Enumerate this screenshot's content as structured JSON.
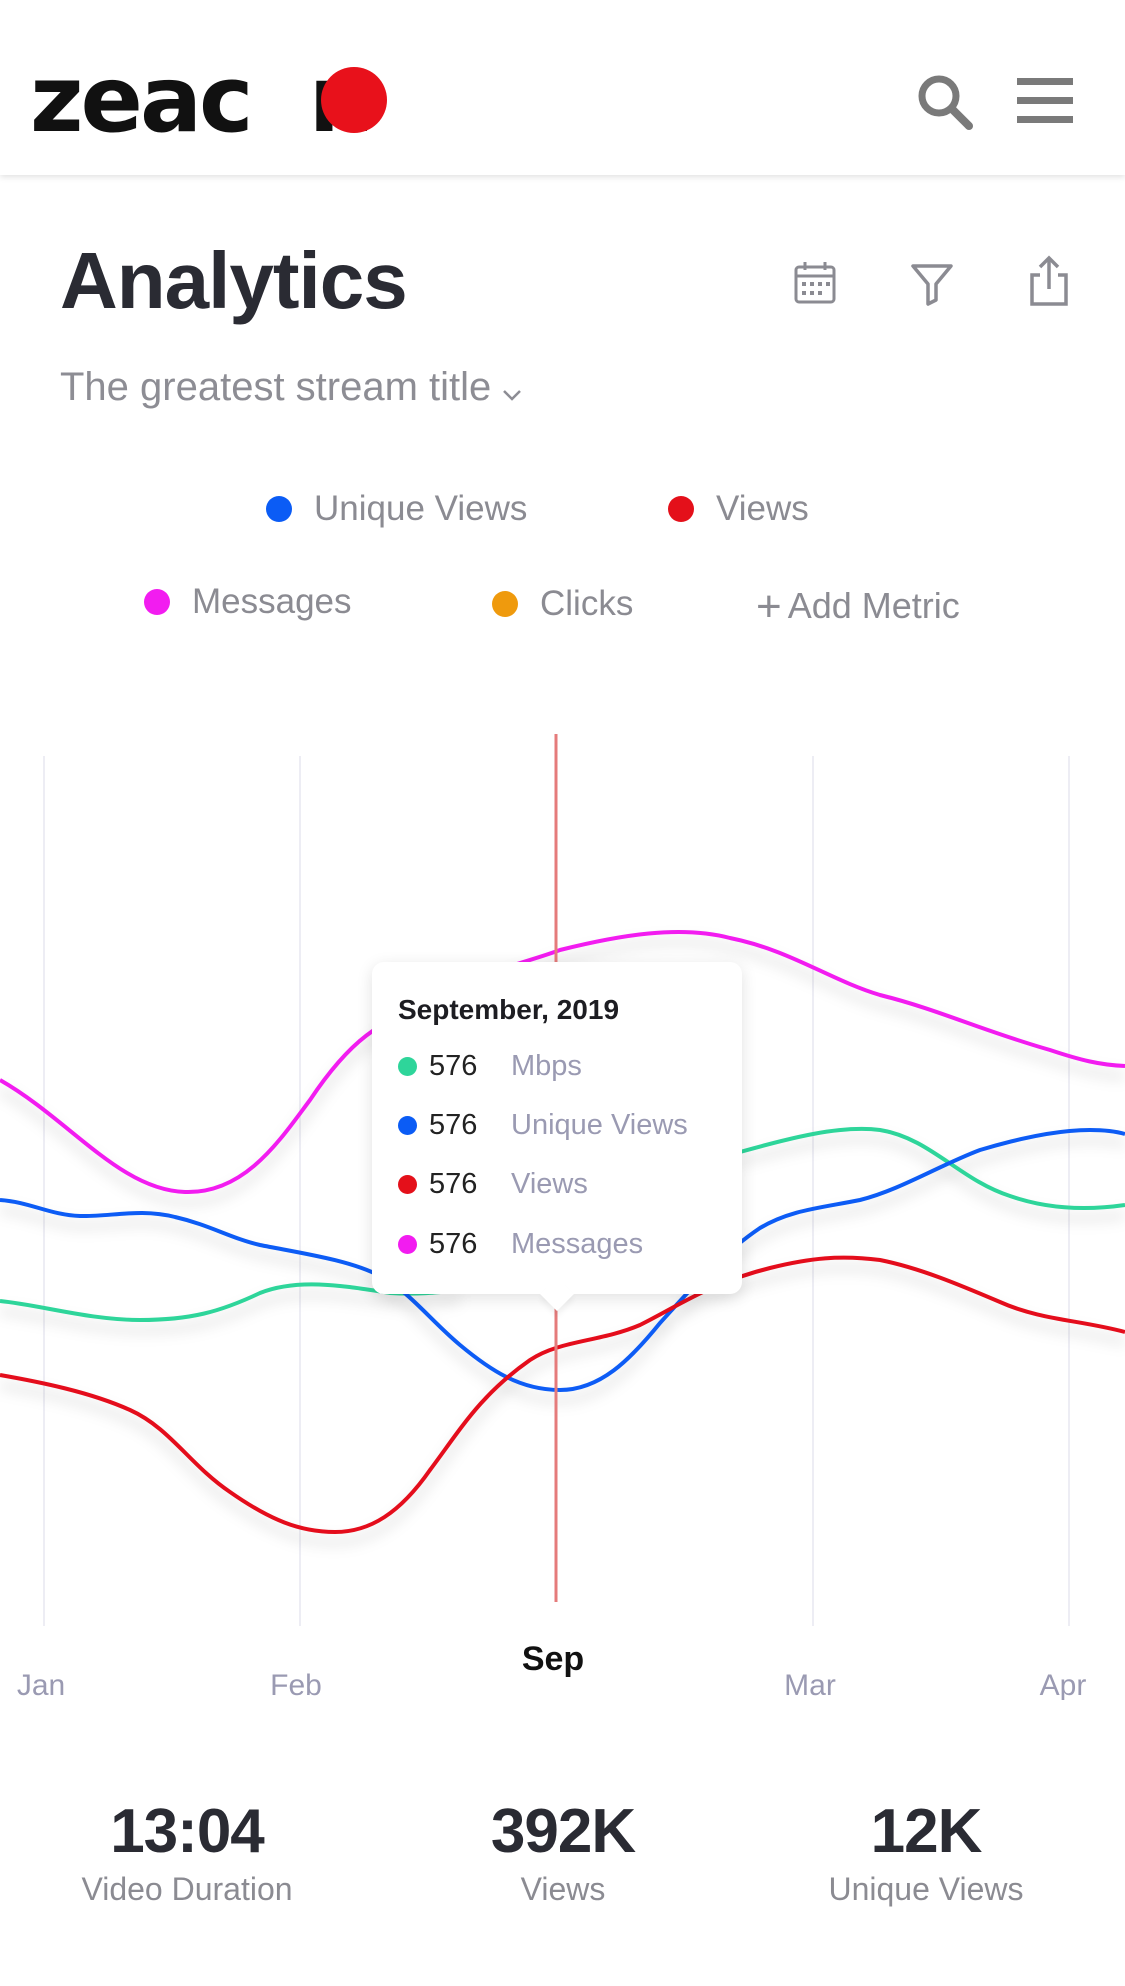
{
  "app": {
    "brand": "zeacon"
  },
  "header": {
    "search_icon": "search-icon",
    "menu_icon": "hamburger-menu-icon"
  },
  "page": {
    "title": "Analytics",
    "stream_title": "The greatest stream title",
    "actions": [
      "calendar-icon",
      "filter-icon",
      "share-icon"
    ]
  },
  "legend": {
    "items": [
      {
        "label": "Unique Views",
        "color": "#0b5cf5"
      },
      {
        "label": "Views",
        "color": "#e4101a"
      },
      {
        "label": "Messages",
        "color": "#f21cf0"
      },
      {
        "label": "Clicks",
        "color": "#ef9a0d"
      }
    ],
    "add_label": "Add Metric"
  },
  "chart_data": {
    "type": "line",
    "x_labels": [
      "Jan",
      "Feb",
      "Sep",
      "Mar",
      "Apr"
    ],
    "active_label": "Sep",
    "grid": true,
    "series": [
      {
        "name": "Messages",
        "color": "#f21cf0"
      },
      {
        "name": "Mbps",
        "color": "#2ed59a"
      },
      {
        "name": "Unique Views",
        "color": "#0b5cf5"
      },
      {
        "name": "Views",
        "color": "#e4101a"
      }
    ]
  },
  "tooltip": {
    "title": "September, 2019",
    "rows": [
      {
        "value": "576",
        "label": "Mbps",
        "color": "#2ed59a"
      },
      {
        "value": "576",
        "label": "Unique Views",
        "color": "#0b5cf5"
      },
      {
        "value": "576",
        "label": "Views",
        "color": "#e4101a"
      },
      {
        "value": "576",
        "label": "Messages",
        "color": "#f21cf0"
      }
    ]
  },
  "stats": [
    {
      "value": "13:04",
      "label": "Video Duration"
    },
    {
      "value": "392K",
      "label": "Views"
    },
    {
      "value": "12K",
      "label": "Unique Views"
    }
  ]
}
